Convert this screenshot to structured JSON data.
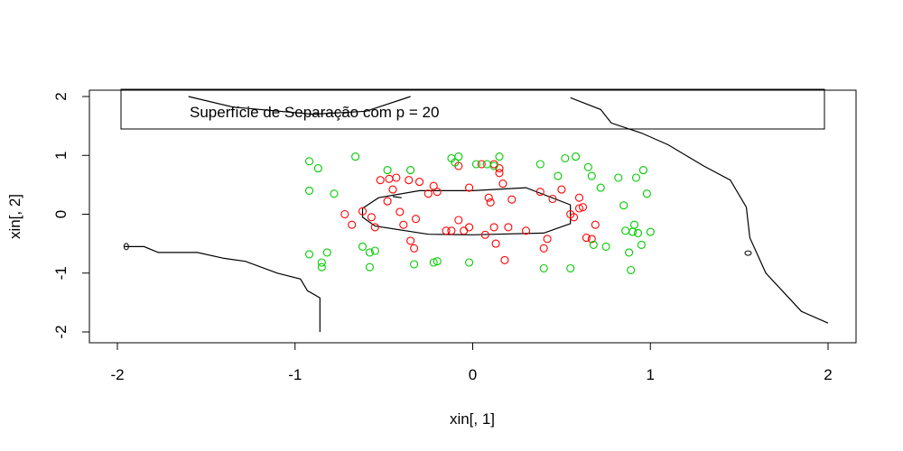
{
  "chart_data": {
    "type": "scatter",
    "xlabel": "xin[, 1]",
    "ylabel": "xin[, 2]",
    "xlim": [
      -2.1,
      2.15
    ],
    "ylim": [
      -2.05,
      2.15
    ],
    "xticks": [
      -2,
      -1,
      0,
      1,
      2
    ],
    "yticks": [
      -2,
      -1,
      0,
      1,
      2
    ],
    "x_tick_labels": [
      "-2",
      "-1",
      "0",
      "1",
      "2"
    ],
    "y_tick_labels": [
      "-2",
      "-1",
      "0",
      "1",
      "2"
    ],
    "grid": false,
    "legend": {
      "text": "Superfície de Separação com p = 20",
      "placement": "top"
    },
    "colors": {
      "class_a": "#ff0000",
      "class_b": "#00cc00",
      "boundary": "#000000"
    },
    "series": [
      {
        "color": "#ff0000",
        "points": [
          [
            -0.72,
            0.0
          ],
          [
            -0.68,
            -0.18
          ],
          [
            -0.62,
            0.05
          ],
          [
            -0.57,
            -0.05
          ],
          [
            -0.55,
            -0.22
          ],
          [
            -0.48,
            0.22
          ],
          [
            -0.45,
            0.42
          ],
          [
            -0.43,
            0.62
          ],
          [
            -0.41,
            0.04
          ],
          [
            -0.39,
            -0.18
          ],
          [
            -0.36,
            0.58
          ],
          [
            -0.35,
            -0.45
          ],
          [
            -0.33,
            -0.58
          ],
          [
            -0.32,
            -0.08
          ],
          [
            -0.3,
            0.55
          ],
          [
            -0.25,
            0.35
          ],
          [
            -0.22,
            0.48
          ],
          [
            -0.2,
            0.38
          ],
          [
            -0.15,
            -0.28
          ],
          [
            -0.12,
            -0.28
          ],
          [
            -0.08,
            -0.1
          ],
          [
            -0.05,
            -0.28
          ],
          [
            -0.02,
            0.45
          ],
          [
            0.05,
            0.85
          ],
          [
            0.07,
            -0.35
          ],
          [
            0.09,
            0.28
          ],
          [
            0.1,
            0.2
          ],
          [
            0.12,
            -0.22
          ],
          [
            0.13,
            -0.5
          ],
          [
            0.15,
            0.7
          ],
          [
            0.17,
            0.52
          ],
          [
            0.18,
            -0.78
          ],
          [
            0.2,
            -0.22
          ],
          [
            0.22,
            0.25
          ],
          [
            0.3,
            -0.28
          ],
          [
            0.38,
            0.38
          ],
          [
            0.4,
            -0.58
          ],
          [
            0.42,
            -0.42
          ],
          [
            0.45,
            0.26
          ],
          [
            0.5,
            0.42
          ],
          [
            0.55,
            0.0
          ],
          [
            0.57,
            -0.05
          ],
          [
            0.6,
            0.28
          ],
          [
            0.62,
            0.12
          ],
          [
            0.64,
            -0.4
          ],
          [
            0.67,
            -0.42
          ],
          [
            0.69,
            -0.18
          ],
          [
            -0.52,
            0.58
          ],
          [
            -0.47,
            0.6
          ],
          [
            0.12,
            0.85
          ],
          [
            -0.02,
            -0.22
          ],
          [
            0.15,
            0.78
          ],
          [
            0.6,
            0.1
          ],
          [
            -0.08,
            0.82
          ]
        ]
      },
      {
        "color": "#00cc00",
        "points": [
          [
            -0.92,
            0.9
          ],
          [
            -0.92,
            0.4
          ],
          [
            -0.87,
            0.78
          ],
          [
            -0.92,
            -0.68
          ],
          [
            -0.85,
            -0.9
          ],
          [
            -0.85,
            -0.82
          ],
          [
            -0.82,
            -0.65
          ],
          [
            -0.78,
            0.35
          ],
          [
            -0.66,
            0.98
          ],
          [
            -0.62,
            -0.55
          ],
          [
            -0.58,
            -0.65
          ],
          [
            -0.58,
            -0.9
          ],
          [
            -0.55,
            -0.62
          ],
          [
            -0.48,
            0.75
          ],
          [
            -0.35,
            0.75
          ],
          [
            -0.33,
            -0.85
          ],
          [
            -0.22,
            -0.82
          ],
          [
            -0.2,
            -0.8
          ],
          [
            -0.12,
            0.95
          ],
          [
            -0.1,
            0.88
          ],
          [
            -0.08,
            0.98
          ],
          [
            -0.02,
            -0.82
          ],
          [
            0.02,
            0.85
          ],
          [
            0.08,
            0.85
          ],
          [
            0.12,
            0.82
          ],
          [
            0.15,
            0.98
          ],
          [
            0.38,
            0.85
          ],
          [
            0.4,
            -0.92
          ],
          [
            0.48,
            0.65
          ],
          [
            0.52,
            0.95
          ],
          [
            0.55,
            -0.92
          ],
          [
            0.58,
            0.98
          ],
          [
            0.65,
            0.8
          ],
          [
            0.67,
            0.65
          ],
          [
            0.68,
            -0.52
          ],
          [
            0.72,
            0.45
          ],
          [
            0.75,
            -0.55
          ],
          [
            0.82,
            0.62
          ],
          [
            0.85,
            0.15
          ],
          [
            0.86,
            -0.28
          ],
          [
            0.88,
            -0.65
          ],
          [
            0.89,
            -0.95
          ],
          [
            0.9,
            -0.3
          ],
          [
            0.91,
            -0.18
          ],
          [
            0.92,
            0.62
          ],
          [
            0.93,
            -0.32
          ],
          [
            0.95,
            -0.52
          ],
          [
            0.96,
            0.75
          ],
          [
            0.98,
            0.35
          ],
          [
            1.0,
            -0.3
          ]
        ]
      }
    ],
    "boundary_curves": [
      [
        [
          -1.96,
          -0.55
        ],
        [
          -1.85,
          -0.55
        ],
        [
          -1.77,
          -0.65
        ],
        [
          -1.55,
          -0.65
        ],
        [
          -1.4,
          -0.75
        ],
        [
          -1.28,
          -0.8
        ],
        [
          -1.1,
          -1.0
        ],
        [
          -0.97,
          -1.1
        ],
        [
          -0.93,
          -1.3
        ],
        [
          -0.86,
          -1.42
        ],
        [
          -0.86,
          -2.0
        ]
      ],
      [
        [
          -0.62,
          0.1
        ],
        [
          -0.53,
          0.28
        ],
        [
          -0.3,
          0.4
        ],
        [
          0.0,
          0.4
        ],
        [
          0.3,
          0.45
        ],
        [
          0.55,
          0.16
        ],
        [
          0.55,
          -0.16
        ],
        [
          0.4,
          -0.32
        ],
        [
          0.0,
          -0.35
        ],
        [
          -0.25,
          -0.34
        ],
        [
          -0.55,
          -0.2
        ],
        [
          -0.62,
          -0.05
        ],
        [
          -0.62,
          0.1
        ]
      ],
      [
        [
          0.55,
          1.98
        ],
        [
          0.72,
          1.78
        ],
        [
          0.78,
          1.55
        ],
        [
          0.95,
          1.38
        ],
        [
          1.1,
          1.18
        ],
        [
          1.3,
          0.82
        ],
        [
          1.45,
          0.58
        ],
        [
          1.54,
          0.12
        ],
        [
          1.56,
          -0.4
        ],
        [
          1.65,
          -1.0
        ],
        [
          1.85,
          -1.65
        ],
        [
          2.0,
          -1.85
        ]
      ],
      [
        [
          -1.6,
          2.0
        ],
        [
          -1.35,
          1.82
        ],
        [
          -0.9,
          1.7
        ],
        [
          -0.6,
          1.75
        ],
        [
          -0.35,
          2.0
        ]
      ],
      [
        [
          -0.45,
          0.3
        ],
        [
          -0.4,
          0.28
        ]
      ]
    ]
  }
}
